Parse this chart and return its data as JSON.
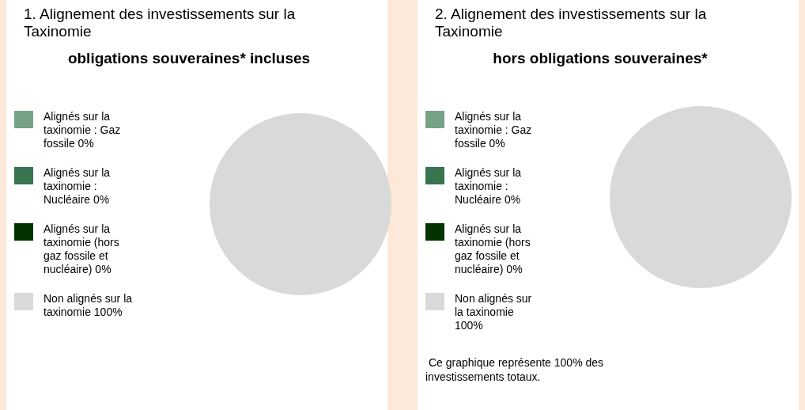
{
  "chart_data": [
    {
      "type": "pie",
      "title": "1. Alignement des investissements sur la Taxinomie",
      "subtitle": "obligations souveraines* incluses",
      "categories": [
        "Alignés sur la taxinomie : Gaz fossile",
        "Alignés sur la taxinomie : Nucléaire",
        "Alignés sur la taxinomie (hors gaz fossile et nucléaire)",
        "Non alignés sur la taxinomie"
      ],
      "values": [
        0,
        0,
        0,
        100
      ],
      "value_labels": [
        "0%",
        "0%",
        "0%",
        "100%"
      ],
      "colors": [
        "#77a286",
        "#37744f",
        "#033300",
        "#d9d9d9"
      ],
      "legend": "left"
    },
    {
      "type": "pie",
      "title": "2. Alignement des investissements sur la Taxinomie",
      "subtitle": "hors obligations souveraines*",
      "categories": [
        "Alignés sur la taxinomie : Gaz fossile",
        "Alignés sur la taxinomie : Nucléaire",
        "Alignés sur la taxinomie (hors gaz fossile et nucléaire)",
        "Non alignés sur la taxinomie"
      ],
      "values": [
        0,
        0,
        0,
        100
      ],
      "value_labels": [
        "0%",
        "0%",
        "0%",
        "100%"
      ],
      "colors": [
        "#77a286",
        "#37744f",
        "#033300",
        "#d9d9d9"
      ],
      "legend": "left",
      "annotations": [
        "Ce graphique représente 100% des investissements totaux."
      ]
    }
  ]
}
